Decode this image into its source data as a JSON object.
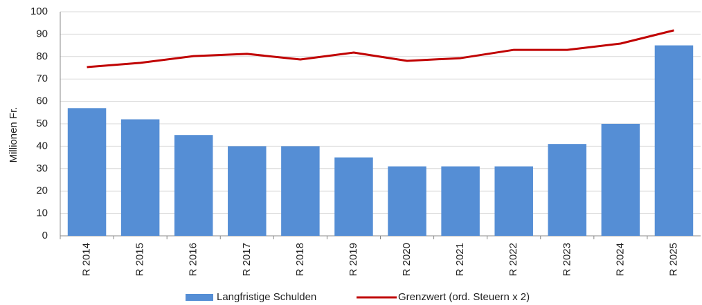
{
  "chart_data": {
    "type": "bar_line",
    "y_label": "Millionen Fr.",
    "categories": [
      "R 2014",
      "R 2015",
      "R 2016",
      "R 2017",
      "R 2018",
      "R 2019",
      "R 2020",
      "R 2021",
      "R 2022",
      "R 2023",
      "R 2024",
      "R 2025"
    ],
    "series": [
      {
        "name": "Langfristige Schulden",
        "type": "bar",
        "color": "#558ed5",
        "values": [
          57,
          52,
          45,
          40,
          40,
          35,
          31,
          31,
          31,
          41,
          50,
          85
        ]
      },
      {
        "name": "Grenzwert (ord. Steuern x 2)",
        "type": "line",
        "color": "#c00000",
        "values": [
          75.3,
          77.2,
          80.2,
          81.2,
          78.7,
          81.8,
          78.1,
          79.3,
          83,
          83,
          85.8,
          91.7
        ]
      }
    ],
    "ylim": [
      0,
      100
    ],
    "yticks": [
      0,
      10,
      20,
      30,
      40,
      50,
      60,
      70,
      80,
      90,
      100
    ],
    "grid": true,
    "legend": "bottom"
  }
}
